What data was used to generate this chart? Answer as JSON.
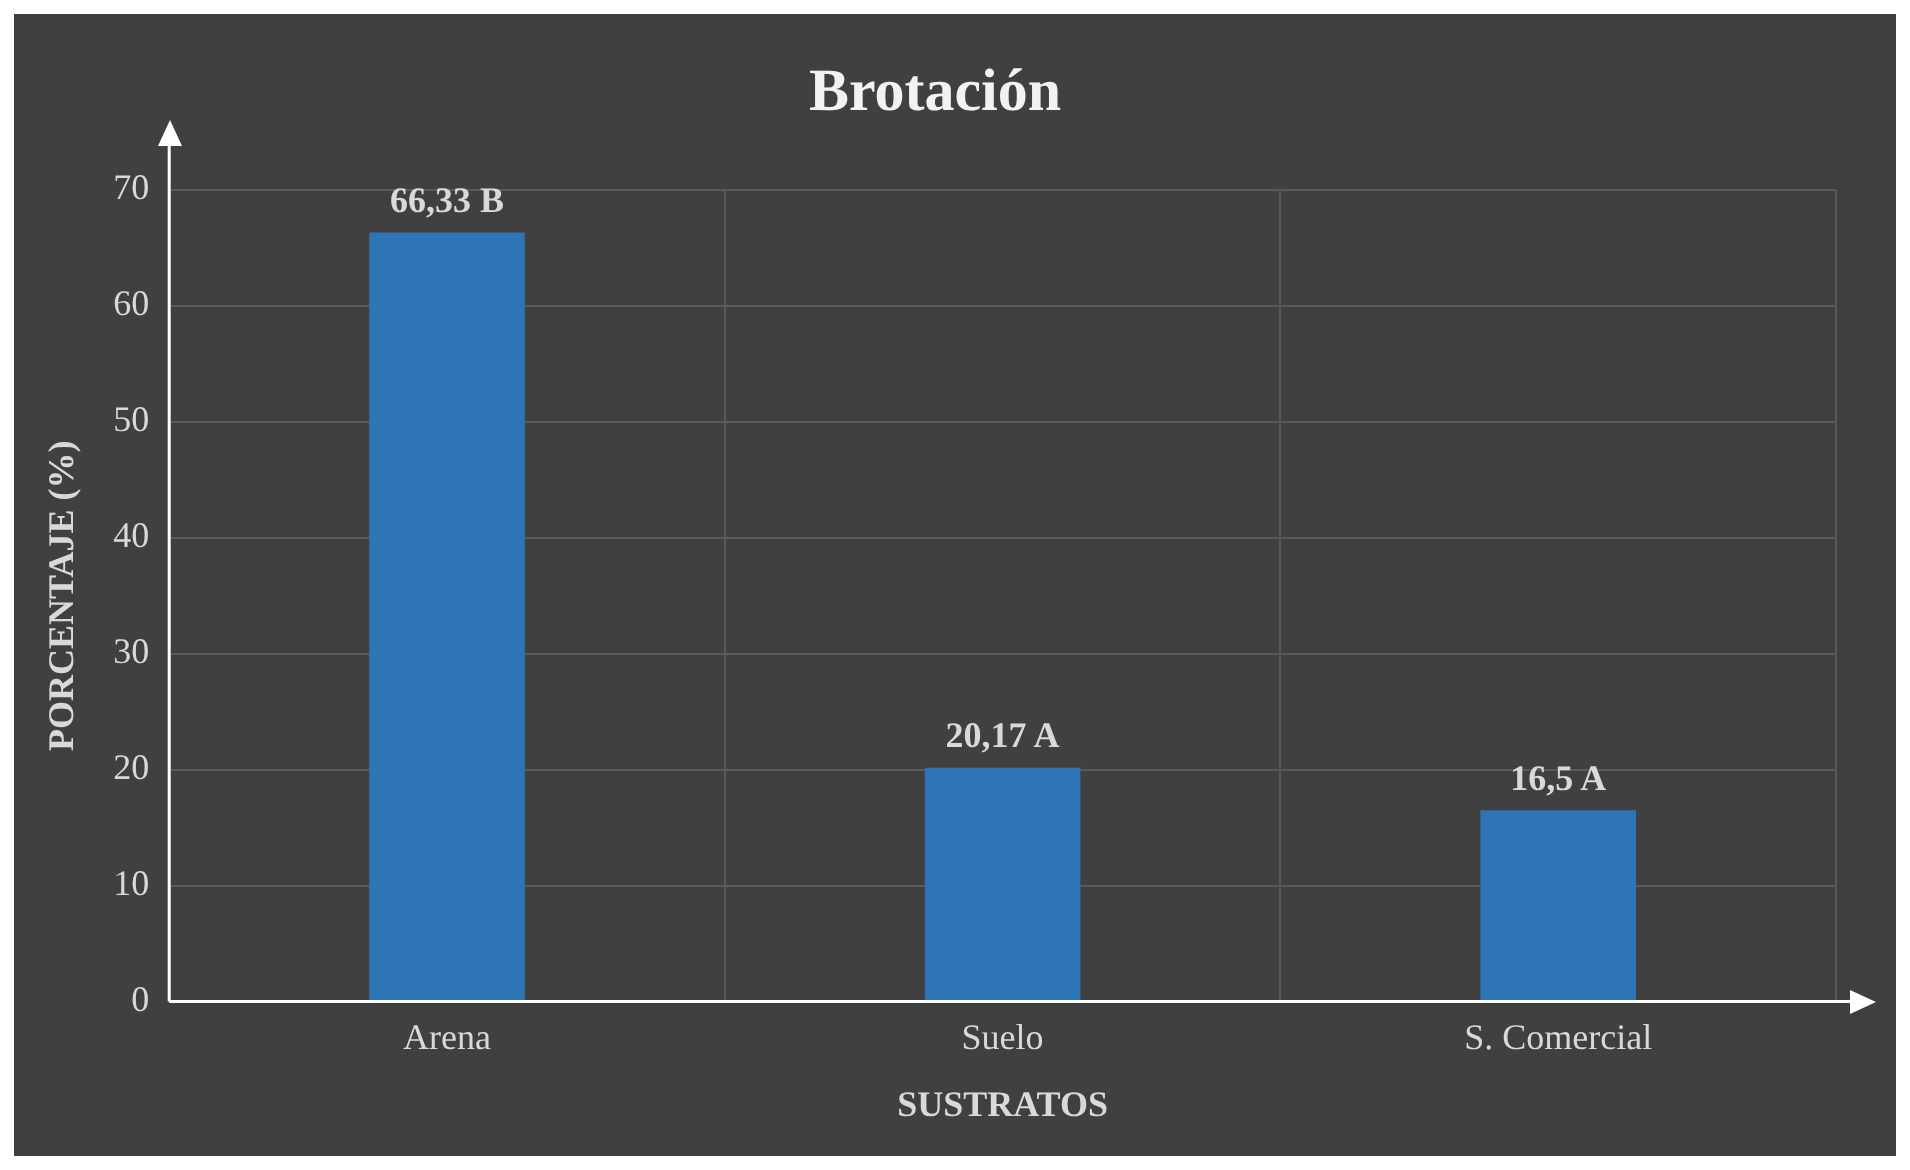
{
  "chart_data": {
    "type": "bar",
    "title": "Brotación",
    "xlabel": "SUSTRATOS",
    "ylabel": "PORCENTAJE (%)",
    "categories": [
      "Arena",
      "Suelo",
      "S. Comercial"
    ],
    "values": [
      66.33,
      20.17,
      16.5
    ],
    "value_labels": [
      "66,33 B",
      "20,17 A",
      "16,5 A"
    ],
    "color": "#2e75b6",
    "ylim": [
      0,
      70
    ],
    "yticks": [
      0,
      10,
      20,
      30,
      40,
      50,
      60,
      70
    ],
    "grid": true,
    "legend": false
  }
}
